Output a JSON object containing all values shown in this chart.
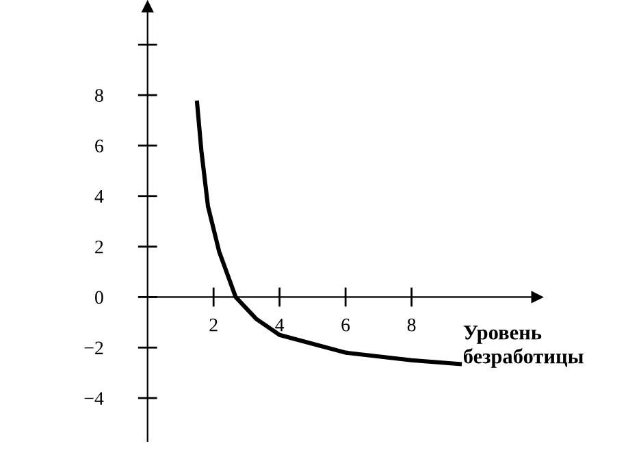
{
  "chart_data": {
    "type": "line",
    "xlabel": "Уровень\nбезработицы",
    "x": [
      1.5,
      1.63,
      1.83,
      2.17,
      2.67,
      3.29,
      4.0,
      6.0,
      8.0,
      9.46
    ],
    "series": [
      {
        "color": "#000000",
        "values": [
          7.7,
          5.8,
          3.6,
          1.8,
          0,
          -0.86,
          -1.5,
          -2.2,
          -2.5,
          -2.65
        ]
      }
    ],
    "xlim": [
      0,
      11.8
    ],
    "ylim": [
      -5.7,
      11.5
    ],
    "xticks": [
      2,
      4,
      6,
      8
    ],
    "yticks": [
      {
        "value": -4,
        "label": "−4"
      },
      {
        "value": -2,
        "label": "−2"
      },
      0,
      2,
      4,
      6,
      8,
      {
        "value": 10,
        "label": null
      }
    ],
    "grid": false,
    "marker": "none",
    "line_style": "solid",
    "legend": false
  }
}
